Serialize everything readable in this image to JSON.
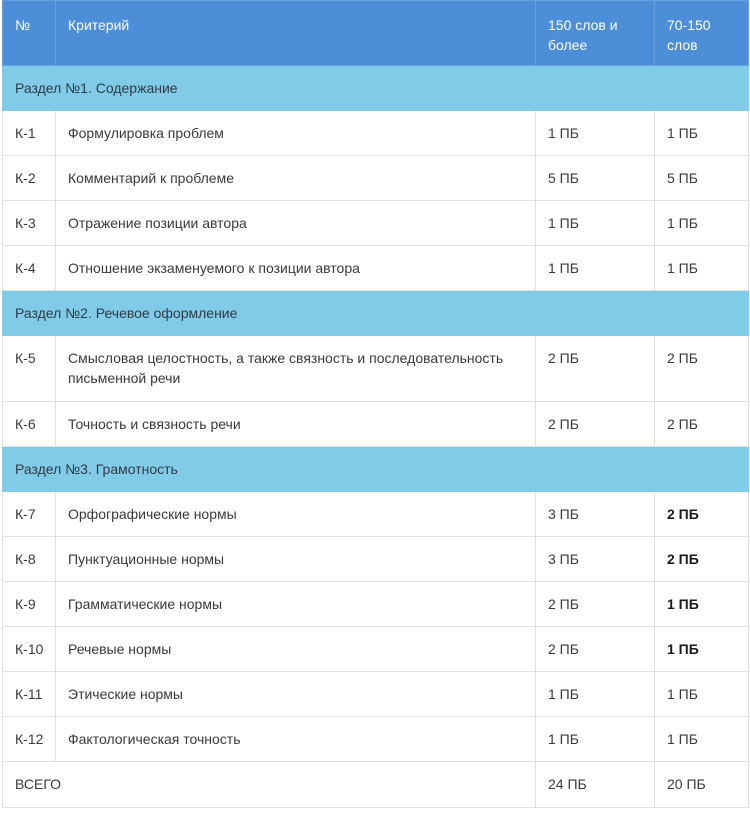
{
  "header": {
    "num": "№",
    "criterion": "Критерий",
    "col_a": "150 слов и более",
    "col_b": "70-150 слов"
  },
  "sections": [
    {
      "title": "Раздел №1. Содержание",
      "rows": [
        {
          "id": "К-1",
          "name": "Формулировка проблем",
          "a": "1 ПБ",
          "b": "1 ПБ"
        },
        {
          "id": "К-2",
          "name": "Комментарий к проблеме",
          "a": "5 ПБ",
          "b": "5 ПБ"
        },
        {
          "id": "К-3",
          "name": "Отражение позиции автора",
          "a": "1 ПБ",
          "b": "1 ПБ"
        },
        {
          "id": "К-4",
          "name": "Отношение экзаменуемого к позиции автора",
          "a": "1 ПБ",
          "b": "1 ПБ"
        }
      ]
    },
    {
      "title": "Раздел №2. Речевое оформление",
      "rows": [
        {
          "id": "К-5",
          "name": "Смысловая целостность, а также связность и последовательность письменной речи",
          "a": "2 ПБ",
          "b": "2 ПБ"
        },
        {
          "id": "К-6",
          "name": "Точность и связность речи",
          "a": "2 ПБ",
          "b": "2 ПБ"
        }
      ]
    },
    {
      "title": "Раздел №3. Грамотность",
      "rows": [
        {
          "id": "К-7",
          "name": "Орфографические нормы",
          "a": "3 ПБ",
          "b": "2 ПБ"
        },
        {
          "id": "К-8",
          "name": "Пунктуационные нормы",
          "a": "3 ПБ",
          "b": "2 ПБ"
        },
        {
          "id": "К-9",
          "name": "Грамматические нормы",
          "a": "2 ПБ",
          "b": "1 ПБ"
        },
        {
          "id": "К-10",
          "name": "Речевые нормы",
          "a": "2 ПБ",
          "b": "1 ПБ"
        },
        {
          "id": "К-11",
          "name": "Этические нормы",
          "a": "1 ПБ",
          "b": "1 ПБ"
        },
        {
          "id": "К-12",
          "name": "Фактологическая точность",
          "a": "1 ПБ",
          "b": "1 ПБ"
        }
      ]
    }
  ],
  "total": {
    "label": "ВСЕГО",
    "a": "24 ПБ",
    "b": "20 ПБ"
  },
  "colors": {
    "header_bg": "#4d8ed9",
    "section_bg": "#80cce8"
  }
}
